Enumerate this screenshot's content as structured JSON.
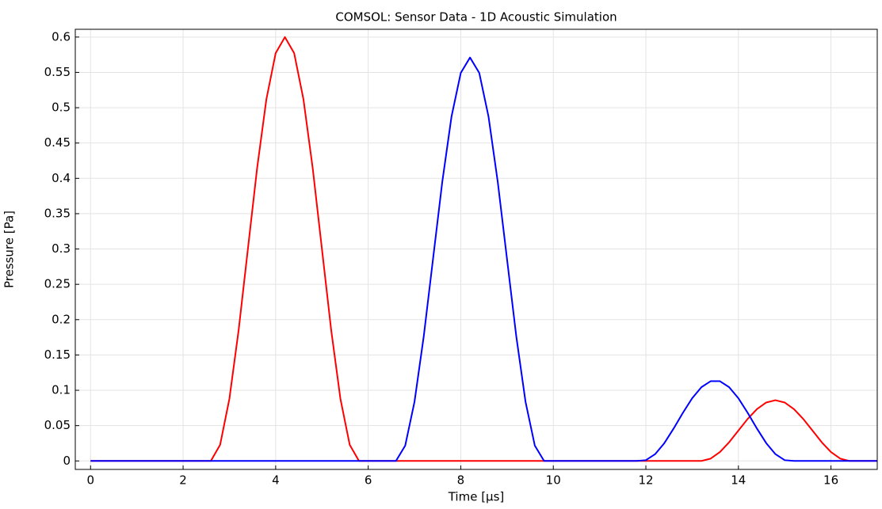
{
  "chart_data": {
    "type": "line",
    "title": "COMSOL: Sensor Data - 1D Acoustic Simulation",
    "x_label": "Time [µs]",
    "y_label": "Pressure [Pa]",
    "x": [
      0,
      0.2,
      0.4,
      0.6,
      0.8,
      1,
      1.2,
      1.4,
      1.6,
      1.8,
      2,
      2.2,
      2.4,
      2.6,
      2.8,
      3,
      3.2,
      3.4,
      3.6,
      3.8,
      4,
      4.2,
      4.4,
      4.6,
      4.8,
      5,
      5.2,
      5.4,
      5.6,
      5.8,
      6,
      6.2,
      6.4,
      6.6,
      6.8,
      7,
      7.2,
      7.4,
      7.6,
      7.8,
      8,
      8.2,
      8.4,
      8.6,
      8.8,
      9,
      9.2,
      9.4,
      9.6,
      9.8,
      10,
      10.2,
      10.4,
      10.6,
      10.8,
      11,
      11.2,
      11.4,
      11.6,
      11.8,
      12,
      12.2,
      12.4,
      12.6,
      12.8,
      13,
      13.2,
      13.4,
      13.6,
      13.8,
      14,
      14.2,
      14.4,
      14.6,
      14.8,
      15,
      15.2,
      15.4,
      15.6,
      15.8,
      16,
      16.2,
      16.4,
      16.6,
      16.8,
      17
    ],
    "series": [
      {
        "color": "#ff0000",
        "values": [
          0,
          0,
          0,
          0,
          0,
          0,
          0,
          0,
          0,
          0,
          0,
          0,
          0,
          0,
          0.0229,
          0.0878,
          0.1852,
          0.3,
          0.4148,
          0.5121,
          0.5772,
          0.6,
          0.5772,
          0.5121,
          0.4148,
          0.3,
          0.1852,
          0.0878,
          0.0229,
          0,
          0,
          0,
          0,
          0,
          0,
          0,
          0,
          0,
          0,
          0,
          0,
          0,
          0,
          0,
          0,
          0,
          0,
          0,
          0,
          0,
          0,
          0,
          0,
          0,
          0,
          0,
          0,
          0,
          0,
          0,
          0,
          0,
          0,
          0,
          0,
          0,
          0,
          0.0033,
          0.0126,
          0.0265,
          0.043,
          0.0595,
          0.0734,
          0.0827,
          0.086,
          0.0827,
          0.0734,
          0.0595,
          0.043,
          0.0265,
          0.0126,
          0.0033,
          0,
          0,
          0,
          0
        ]
      },
      {
        "color": "#0000ff",
        "values": [
          0,
          0,
          0,
          0,
          0,
          0,
          0,
          0,
          0,
          0,
          0,
          0,
          0,
          0,
          0,
          0,
          0,
          0,
          0,
          0,
          0,
          0,
          0,
          0,
          0,
          0,
          0,
          0,
          0,
          0,
          0,
          0,
          0,
          0,
          0.0218,
          0.0836,
          0.1763,
          0.2855,
          0.3947,
          0.4874,
          0.5492,
          0.571,
          0.5492,
          0.4874,
          0.3947,
          0.2855,
          0.1763,
          0.0836,
          0.0218,
          0,
          0,
          0,
          0,
          0,
          0,
          0,
          0,
          0,
          0,
          0,
          0.0011,
          0.0096,
          0.0253,
          0.0459,
          0.0681,
          0.0887,
          0.1044,
          0.1129,
          0.1129,
          0.1044,
          0.0887,
          0.0681,
          0.0459,
          0.0253,
          0.0096,
          0.0011,
          0,
          0,
          0,
          0,
          0,
          0,
          0,
          0,
          0,
          0
        ]
      }
    ],
    "xlim": [
      -0.33,
      17
    ],
    "ylim": [
      -0.012,
      0.611
    ],
    "xticks": [
      0,
      2,
      4,
      6,
      8,
      10,
      12,
      14,
      16
    ],
    "yticks": [
      0,
      0.05,
      0.1,
      0.15,
      0.2,
      0.25,
      0.3,
      0.35,
      0.4,
      0.45,
      0.5,
      0.55,
      0.6
    ],
    "grid": true
  }
}
